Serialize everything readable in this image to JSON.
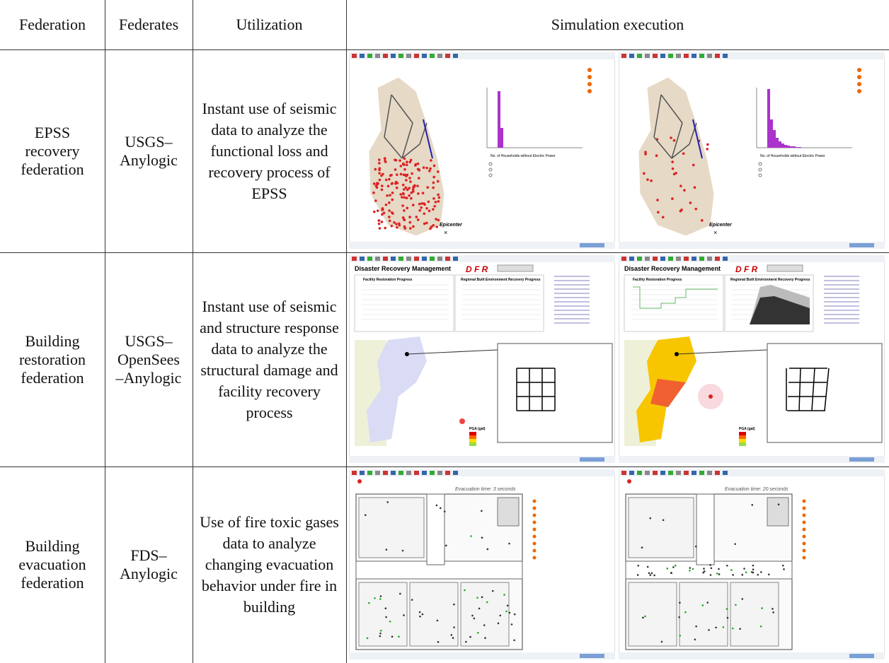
{
  "table": {
    "header": [
      "Federation",
      "Federates",
      "Utilization",
      "Simulation execution"
    ],
    "rows": [
      {
        "federation": [
          "EPSS",
          "recovery",
          "federation"
        ],
        "federates": [
          "USGS–",
          "Anylogic"
        ],
        "utilization": "Instant use of seismic data to analyze the functional loss and recovery process of EPSS",
        "screens": [
          {
            "label": "Epicenter",
            "legend": "No. of Households without Electric Power"
          },
          {
            "label": "Epicenter",
            "legend": "No. of Households without Electric Power"
          }
        ]
      },
      {
        "federation": [
          "Building",
          "restoration",
          "federation"
        ],
        "federates": [
          "USGS–",
          "OpenSees",
          "–Anylogic"
        ],
        "utilization": "Instant use of seismic and structure response data to analyze the structural damage and facility recovery process",
        "screens": [
          {
            "title": "Disaster Recovery Management",
            "logo": "D F R",
            "chart1": "Facility Restoration Progress",
            "chart2": "Regional Built Environment Recovery Progress",
            "legend": "PGA (gal)"
          },
          {
            "title": "Disaster Recovery Management",
            "logo": "D F R",
            "chart1": "Facility Restoration Progress",
            "chart2": "Regional Built Environment Recovery Progress",
            "legend": "PGA (gal)"
          }
        ]
      },
      {
        "federation": [
          "Building",
          "evacuation",
          "federation"
        ],
        "federates": [
          "FDS–",
          "Anylogic"
        ],
        "utilization": "Use of fire toxic gases data to analyze changing evacuation behavior under fire in building",
        "screens": [
          {
            "timer": "Evacuation time:  3 seconds"
          },
          {
            "timer": "Evacuation time:  20 seconds"
          }
        ]
      }
    ]
  }
}
